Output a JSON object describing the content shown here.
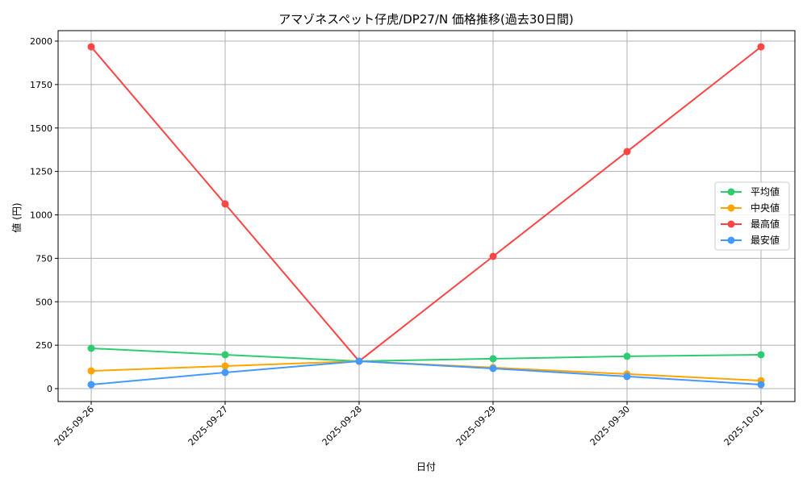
{
  "chart_data": {
    "type": "line",
    "title": "アマゾネスペット仔虎/DP27/N 価格推移(過去30日間)",
    "xlabel": "日付",
    "ylabel": "値 (円)",
    "categories": [
      "2025-09-26",
      "2025-09-27",
      "2025-09-28",
      "2025-09-29",
      "2025-09-30",
      "2025-10-01"
    ],
    "ylim": [
      -75,
      2065
    ],
    "yticks": [
      0,
      250,
      500,
      750,
      1000,
      1250,
      1500,
      1750,
      2000
    ],
    "grid": true,
    "legend_position": "center-right",
    "series": [
      {
        "name": "平均値",
        "color": "#2ecc71",
        "values": [
          232,
          195,
          158,
          172,
          186,
          195
        ]
      },
      {
        "name": "中央値",
        "color": "#ffa500",
        "values": [
          102,
          130,
          158,
          121,
          84,
          46
        ]
      },
      {
        "name": "最高値",
        "color": "#ff4444",
        "values": [
          1967,
          1063,
          158,
          761,
          1364,
          1967
        ]
      },
      {
        "name": "最安値",
        "color": "#4499ff",
        "values": [
          23,
          93,
          158,
          116,
          70,
          23
        ]
      }
    ]
  }
}
